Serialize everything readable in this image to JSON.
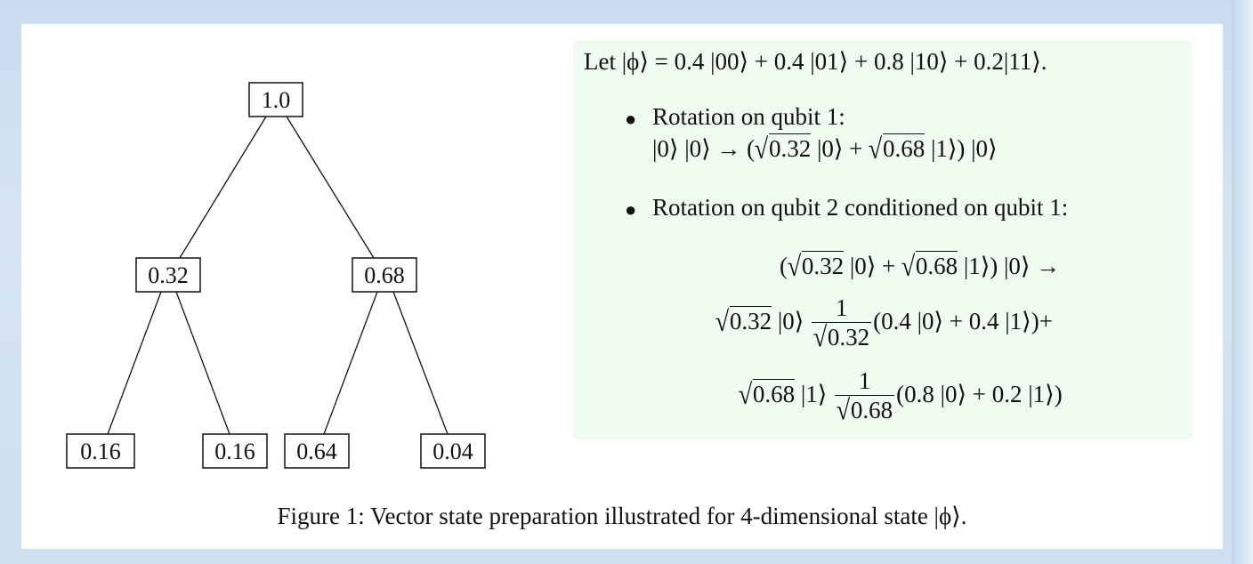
{
  "tree": {
    "nodes": [
      {
        "id": "root",
        "label": "1.0"
      },
      {
        "id": "l",
        "label": "0.32"
      },
      {
        "id": "r",
        "label": "0.68"
      },
      {
        "id": "ll",
        "label": "0.16"
      },
      {
        "id": "lr",
        "label": "0.16"
      },
      {
        "id": "rl",
        "label": "0.64"
      },
      {
        "id": "rr",
        "label": "0.04"
      }
    ],
    "edges": [
      [
        "root",
        "l"
      ],
      [
        "root",
        "r"
      ],
      [
        "l",
        "ll"
      ],
      [
        "l",
        "lr"
      ],
      [
        "r",
        "rl"
      ],
      [
        "r",
        "rr"
      ]
    ]
  },
  "panel": {
    "background": "#f0fcef",
    "let_line": "Let |ϕ⟩ = 0.4 |00⟩ + 0.4 |01⟩ + 0.8 |10⟩ + 0.2|11⟩.",
    "bullet1_title": "Rotation on qubit 1:",
    "bullet1_pre": "|0⟩ |0⟩ → (",
    "sqrt_032": "0.32",
    "sqrt_068": "0.68",
    "ket0": " |0⟩ + ",
    "ket1_close": " |1⟩) |0⟩",
    "bullet2_title": "Rotation on qubit 2 conditioned on qubit 1:",
    "eq1_open": "(",
    "eq1_arrow": " |1⟩) |0⟩ →",
    "eq2_ket": " |0⟩ ",
    "frac_num": "1",
    "eq2_rest": "(0.4 |0⟩ + 0.4 |1⟩)+",
    "eq3_ket": " |1⟩ ",
    "eq3_rest": "(0.8 |0⟩ + 0.2 |1⟩)",
    "bullet_glyph": "●"
  },
  "caption": "Figure 1: Vector state preparation illustrated for 4-dimensional state |ϕ⟩."
}
